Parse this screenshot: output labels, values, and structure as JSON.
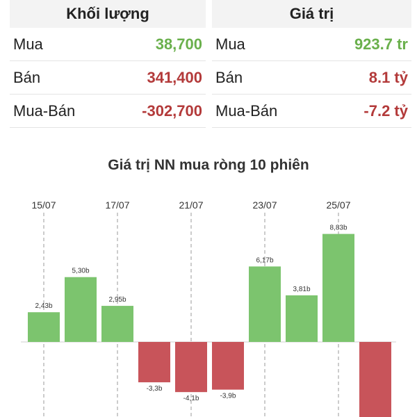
{
  "summary": {
    "volume": {
      "title": "Khối lượng",
      "rows": [
        {
          "label": "Mua",
          "value": "38,700",
          "tone": "pos"
        },
        {
          "label": "Bán",
          "value": "341,400",
          "tone": "neg"
        },
        {
          "label": "Mua-Bán",
          "value": "-302,700",
          "tone": "neg"
        }
      ]
    },
    "value": {
      "title": "Giá trị",
      "rows": [
        {
          "label": "Mua",
          "value": "923.7 tr",
          "tone": "pos"
        },
        {
          "label": "Bán",
          "value": "8.1 tỷ",
          "tone": "neg"
        },
        {
          "label": "Mua-Bán",
          "value": "-7.2 tỷ",
          "tone": "neg"
        }
      ]
    }
  },
  "colors": {
    "positive_bar": "#7cc46e",
    "negative_bar": "#c8545a",
    "positive_text": "#6ab04c",
    "negative_text": "#b33a3a"
  },
  "chart_data": {
    "type": "bar",
    "title": "Giá trị NN mua ròng 10 phiên",
    "xlabel": "",
    "ylabel": "",
    "grid": "vertical dashed lines at labeled dates",
    "date_labels": [
      "15/07",
      "17/07",
      "21/07",
      "23/07",
      "25/07"
    ],
    "values": [
      2.43,
      5.3,
      2.95,
      -3.3,
      -4.1,
      -3.9,
      6.17,
      3.81,
      8.83,
      -7.2
    ],
    "value_labels": [
      "2,43b",
      "5,30b",
      "2,95b",
      "-3,3b",
      "-4,1b",
      "-3,9b",
      "6,17b",
      "3,81b",
      "8,83b",
      ""
    ]
  }
}
